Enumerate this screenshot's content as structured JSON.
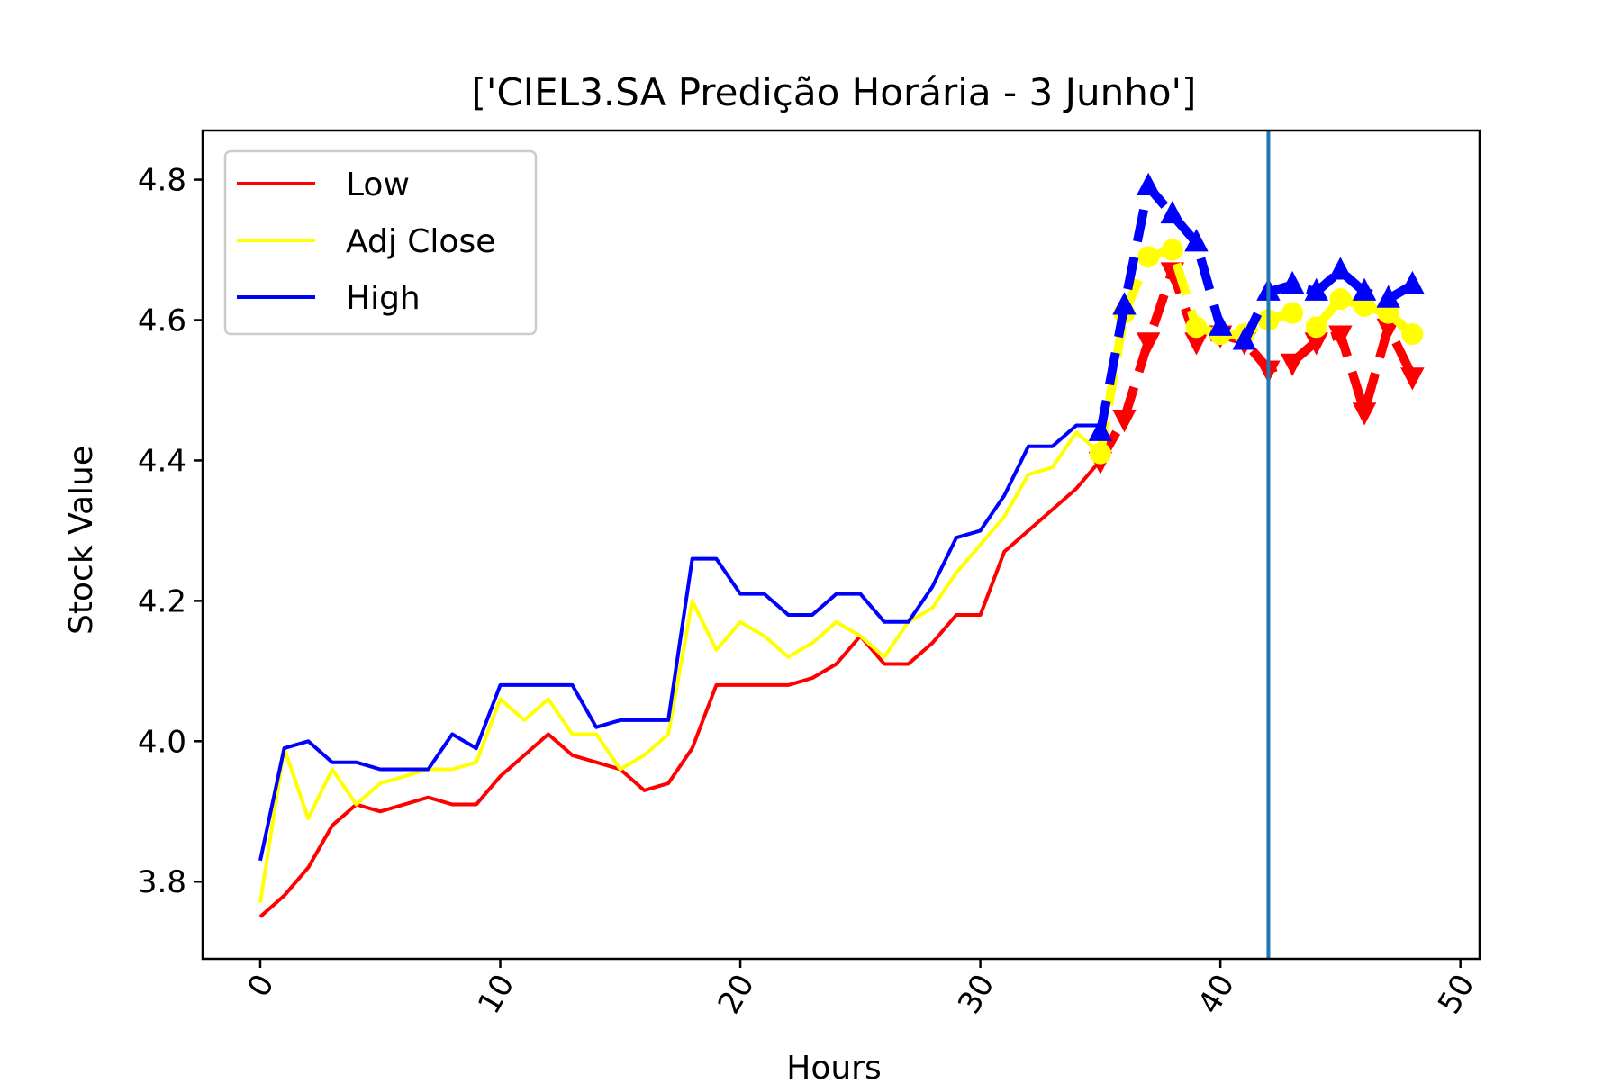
{
  "chart_data": {
    "type": "line",
    "title": "['CIEL3.SA Predição Horária - 3 Junho']",
    "xlabel": "Hours",
    "ylabel": "Stock Value",
    "xlim": [
      -2.4,
      50.8
    ],
    "ylim": [
      3.69,
      4.87
    ],
    "x_ticks": [
      0,
      10,
      20,
      30,
      40,
      50
    ],
    "y_ticks": [
      3.8,
      4.0,
      4.2,
      4.4,
      4.6,
      4.8
    ],
    "x_tick_labels": [
      "0",
      "10",
      "20",
      "30",
      "40",
      "50"
    ],
    "y_tick_labels": [
      "3.8",
      "4.0",
      "4.2",
      "4.4",
      "4.6",
      "4.8"
    ],
    "grid": false,
    "legend_position": "upper-left",
    "vertical_line": {
      "x": 42,
      "color": "#1f77b4"
    },
    "series": [
      {
        "name": "Low",
        "color": "#ff0000",
        "x": [
          0,
          1,
          2,
          3,
          4,
          5,
          6,
          7,
          8,
          9,
          10,
          11,
          12,
          13,
          14,
          15,
          16,
          17,
          18,
          19,
          20,
          21,
          22,
          23,
          24,
          25,
          26,
          27,
          28,
          29,
          30,
          31,
          32,
          33,
          34,
          35
        ],
        "values": [
          3.75,
          3.78,
          3.82,
          3.88,
          3.91,
          3.9,
          3.91,
          3.92,
          3.91,
          3.91,
          3.95,
          3.98,
          4.01,
          3.98,
          3.97,
          3.96,
          3.93,
          3.94,
          3.99,
          4.08,
          4.08,
          4.08,
          4.08,
          4.09,
          4.11,
          4.15,
          4.11,
          4.11,
          4.14,
          4.18,
          4.18,
          4.27,
          4.3,
          4.33,
          4.36,
          4.4
        ],
        "prediction": {
          "x": [
            35,
            36,
            37,
            38,
            39,
            40,
            41,
            42,
            43,
            44,
            45,
            46,
            47,
            48
          ],
          "values": [
            4.4,
            4.46,
            4.57,
            4.67,
            4.57,
            4.58,
            4.57,
            4.53,
            4.54,
            4.57,
            4.58,
            4.47,
            4.59,
            4.52
          ],
          "marker": "triangle-down",
          "linestyle": "dashed"
        }
      },
      {
        "name": "Adj Close",
        "color": "#ffff00",
        "x": [
          0,
          1,
          2,
          3,
          4,
          5,
          6,
          7,
          8,
          9,
          10,
          11,
          12,
          13,
          14,
          15,
          16,
          17,
          18,
          19,
          20,
          21,
          22,
          23,
          24,
          25,
          26,
          27,
          28,
          29,
          30,
          31,
          32,
          33,
          34,
          35
        ],
        "values": [
          3.77,
          3.99,
          3.89,
          3.96,
          3.91,
          3.94,
          3.95,
          3.96,
          3.96,
          3.97,
          4.06,
          4.03,
          4.06,
          4.01,
          4.01,
          3.96,
          3.98,
          4.01,
          4.2,
          4.13,
          4.17,
          4.15,
          4.12,
          4.14,
          4.17,
          4.15,
          4.12,
          4.17,
          4.19,
          4.24,
          4.28,
          4.32,
          4.38,
          4.39,
          4.44,
          4.41
        ],
        "prediction": {
          "x": [
            35,
            36,
            37,
            38,
            39,
            40,
            41,
            42,
            43,
            44,
            45,
            46,
            47,
            48
          ],
          "values": [
            4.41,
            4.61,
            4.69,
            4.7,
            4.59,
            4.58,
            4.58,
            4.6,
            4.61,
            4.59,
            4.63,
            4.62,
            4.61,
            4.58
          ],
          "marker": "circle",
          "linestyle": "dashed"
        }
      },
      {
        "name": "High",
        "color": "#0000ff",
        "x": [
          0,
          1,
          2,
          3,
          4,
          5,
          6,
          7,
          8,
          9,
          10,
          11,
          12,
          13,
          14,
          15,
          16,
          17,
          18,
          19,
          20,
          21,
          22,
          23,
          24,
          25,
          26,
          27,
          28,
          29,
          30,
          31,
          32,
          33,
          34,
          35
        ],
        "values": [
          3.83,
          3.99,
          4.0,
          3.97,
          3.97,
          3.96,
          3.96,
          3.96,
          4.01,
          3.99,
          4.08,
          4.08,
          4.08,
          4.08,
          4.02,
          4.03,
          4.03,
          4.03,
          4.26,
          4.26,
          4.21,
          4.21,
          4.18,
          4.18,
          4.21,
          4.21,
          4.17,
          4.17,
          4.22,
          4.29,
          4.3,
          4.35,
          4.42,
          4.42,
          4.45,
          4.45
        ],
        "prediction": {
          "x": [
            35,
            36,
            37,
            38,
            39,
            40,
            41,
            42,
            43,
            44,
            45,
            46,
            47,
            48
          ],
          "values": [
            4.44,
            4.62,
            4.79,
            4.75,
            4.71,
            4.59,
            4.57,
            4.64,
            4.65,
            4.64,
            4.67,
            4.64,
            4.63,
            4.65
          ],
          "marker": "triangle-up",
          "linestyle": "dashed"
        }
      }
    ]
  }
}
